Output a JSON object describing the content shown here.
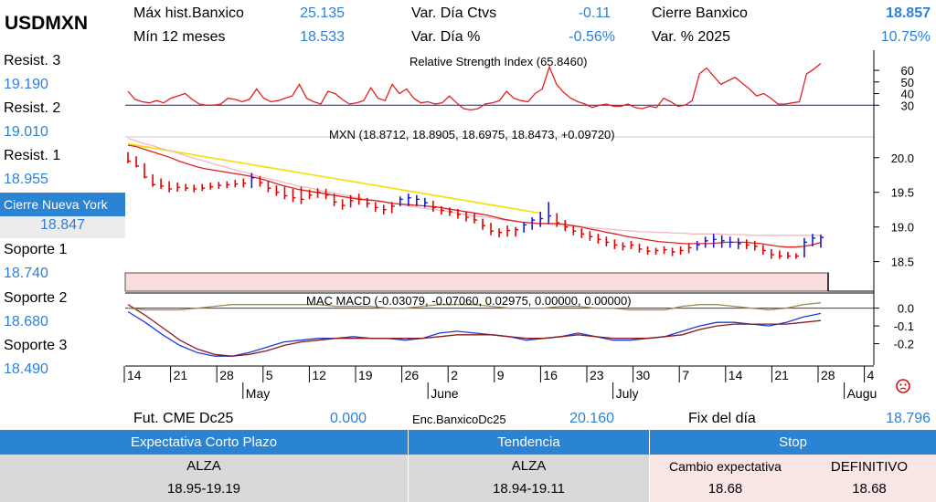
{
  "header": {
    "symbol": "USDMXN",
    "max_hist_label": "Máx hist.Banxico",
    "max_hist_value": "25.135",
    "min_12m_label": "Mín 12 meses",
    "min_12m_value": "18.533",
    "var_dia_ctvs_label": "Var. Día Ctvs",
    "var_dia_ctvs_value": "-0.11",
    "var_dia_pct_label": "Var. Día %",
    "var_dia_pct_value": "-0.56%",
    "cierre_banxico_label": "Cierre Banxico",
    "cierre_banxico_value": "18.857",
    "var_2025_label": "Var. % 2025",
    "var_2025_value": "10.75%"
  },
  "levels": {
    "resist3_label": "Resist. 3",
    "resist3_value": "19.190",
    "resist2_label": "Resist. 2",
    "resist2_value": "19.010",
    "resist1_label": "Resist. 1",
    "resist1_value": "18.955",
    "ny_label": "Cierre Nueva York",
    "ny_value": "18.847",
    "soporte1_label": "Soporte 1",
    "soporte1_value": "18.740",
    "soporte2_label": "Soporte 2",
    "soporte2_value": "18.680",
    "soporte3_label": "Soporte 3",
    "soporte3_value": "18.490"
  },
  "footer_row": {
    "fut_label": "Fut. CME Dc25",
    "fut_value": "0.000",
    "enc_label": "Enc.BanxicoDc25",
    "enc_value": "20.160",
    "fix_label": "Fix del día",
    "fix_value": "18.796"
  },
  "table": {
    "col1_header": "Expectativa Corto Plazo",
    "col2_header": "Tendencia",
    "col3_header": "Stop",
    "col1_line1": "ALZA",
    "col1_line2": "18.95-19.19",
    "col2_line1": "ALZA",
    "col2_line2": "18.94-19.11",
    "col3_label1": "Cambio expectativa",
    "col3_label2": "DEFINITIVO",
    "col3_value1": "18.68",
    "col3_value2": "18.68"
  },
  "colors": {
    "accent_blue": "#2b83d4",
    "value_blue": "#2f7fd7",
    "down_bar": "#e00000",
    "up_bar": "#1a1acc",
    "ma_red": "#e02020",
    "ma_pink": "#f4b8c0",
    "ma_yellow": "#f2e000",
    "table_grey": "#d9d9d9",
    "table_pink": "#fbe6e6"
  },
  "chart_data": [
    {
      "type": "line",
      "title": "Relative Strength Index (65.8460)",
      "ylim": [
        20,
        75
      ],
      "yticks": [
        30,
        40,
        50,
        60
      ],
      "reference_line": 30,
      "values": [
        42,
        35,
        33,
        32,
        34,
        32,
        36,
        38,
        40,
        35,
        31,
        30,
        30,
        31,
        36,
        35,
        33,
        35,
        44,
        36,
        33,
        34,
        36,
        38,
        48,
        36,
        33,
        31,
        42,
        40,
        35,
        31,
        32,
        34,
        45,
        36,
        34,
        48,
        40,
        44,
        36,
        32,
        33,
        31,
        32,
        38,
        32,
        27,
        26,
        27,
        31,
        32,
        34,
        42,
        36,
        34,
        33,
        40,
        44,
        63,
        48,
        41,
        36,
        33,
        31,
        28,
        30,
        31,
        29,
        29,
        31,
        28,
        27,
        29,
        28,
        36,
        33,
        29,
        30,
        34,
        57,
        62,
        55,
        48,
        51,
        54,
        49,
        44,
        38,
        40,
        36,
        31,
        31,
        32,
        33,
        57,
        61,
        66
      ]
    },
    {
      "type": "candlestick",
      "title": "MXN (18.8712, 18.8905, 18.6975, 18.8473, +0.09720)",
      "ylim": [
        18.35,
        20.3
      ],
      "yticks": [
        18.5,
        19.0,
        19.5,
        20.0
      ],
      "x_tick_labels": [
        "14",
        "21",
        "28",
        "5",
        "12",
        "19",
        "26",
        "2",
        "9",
        "16",
        "23",
        "30",
        "7",
        "14",
        "21",
        "28",
        "4"
      ],
      "month_labels": [
        "May",
        "June",
        "July",
        "Augu"
      ],
      "bars": [
        {
          "h": 20.08,
          "l": 19.92,
          "c": 19.95,
          "up": false
        },
        {
          "h": 20.02,
          "l": 19.86,
          "c": 19.88,
          "up": false
        },
        {
          "h": 19.92,
          "l": 19.7,
          "c": 19.72,
          "up": false
        },
        {
          "h": 19.76,
          "l": 19.58,
          "c": 19.61,
          "up": false
        },
        {
          "h": 19.7,
          "l": 19.55,
          "c": 19.59,
          "up": false
        },
        {
          "h": 19.66,
          "l": 19.5,
          "c": 19.55,
          "up": false
        },
        {
          "h": 19.64,
          "l": 19.51,
          "c": 19.57,
          "up": false
        },
        {
          "h": 19.62,
          "l": 19.52,
          "c": 19.56,
          "up": false
        },
        {
          "h": 19.61,
          "l": 19.5,
          "c": 19.55,
          "up": false
        },
        {
          "h": 19.62,
          "l": 19.52,
          "c": 19.56,
          "up": false
        },
        {
          "h": 19.64,
          "l": 19.54,
          "c": 19.58,
          "up": false
        },
        {
          "h": 19.65,
          "l": 19.55,
          "c": 19.6,
          "up": false
        },
        {
          "h": 19.66,
          "l": 19.56,
          "c": 19.61,
          "up": false
        },
        {
          "h": 19.68,
          "l": 19.57,
          "c": 19.62,
          "up": false
        },
        {
          "h": 19.7,
          "l": 19.57,
          "c": 19.63,
          "up": false
        },
        {
          "h": 19.78,
          "l": 19.56,
          "c": 19.71,
          "up": true
        },
        {
          "h": 19.73,
          "l": 19.58,
          "c": 19.64,
          "up": false
        },
        {
          "h": 19.66,
          "l": 19.5,
          "c": 19.56,
          "up": false
        },
        {
          "h": 19.6,
          "l": 19.45,
          "c": 19.5,
          "up": false
        },
        {
          "h": 19.58,
          "l": 19.4,
          "c": 19.45,
          "up": false
        },
        {
          "h": 19.55,
          "l": 19.36,
          "c": 19.42,
          "up": false
        },
        {
          "h": 19.58,
          "l": 19.33,
          "c": 19.4,
          "up": false
        },
        {
          "h": 19.54,
          "l": 19.4,
          "c": 19.46,
          "up": false
        },
        {
          "h": 19.56,
          "l": 19.42,
          "c": 19.5,
          "up": false
        },
        {
          "h": 19.55,
          "l": 19.4,
          "c": 19.46,
          "up": false
        },
        {
          "h": 19.48,
          "l": 19.3,
          "c": 19.36,
          "up": false
        },
        {
          "h": 19.4,
          "l": 19.25,
          "c": 19.31,
          "up": false
        },
        {
          "h": 19.46,
          "l": 19.28,
          "c": 19.38,
          "up": false
        },
        {
          "h": 19.48,
          "l": 19.32,
          "c": 19.4,
          "up": false
        },
        {
          "h": 19.42,
          "l": 19.28,
          "c": 19.34,
          "up": false
        },
        {
          "h": 19.36,
          "l": 19.22,
          "c": 19.28,
          "up": false
        },
        {
          "h": 19.32,
          "l": 19.18,
          "c": 19.25,
          "up": false
        },
        {
          "h": 19.36,
          "l": 19.2,
          "c": 19.3,
          "up": false
        },
        {
          "h": 19.44,
          "l": 19.3,
          "c": 19.4,
          "up": true
        },
        {
          "h": 19.48,
          "l": 19.3,
          "c": 19.42,
          "up": true
        },
        {
          "h": 19.46,
          "l": 19.3,
          "c": 19.4,
          "up": true
        },
        {
          "h": 19.42,
          "l": 19.28,
          "c": 19.35,
          "up": true
        },
        {
          "h": 19.38,
          "l": 19.22,
          "c": 19.28,
          "up": false
        },
        {
          "h": 19.3,
          "l": 19.18,
          "c": 19.24,
          "up": false
        },
        {
          "h": 19.28,
          "l": 19.16,
          "c": 19.22,
          "up": false
        },
        {
          "h": 19.26,
          "l": 19.12,
          "c": 19.18,
          "up": false
        },
        {
          "h": 19.22,
          "l": 19.08,
          "c": 19.14,
          "up": false
        },
        {
          "h": 19.2,
          "l": 19.05,
          "c": 19.1,
          "up": false
        },
        {
          "h": 19.12,
          "l": 18.96,
          "c": 19.02,
          "up": false
        },
        {
          "h": 19.06,
          "l": 18.88,
          "c": 18.94,
          "up": false
        },
        {
          "h": 18.98,
          "l": 18.85,
          "c": 18.92,
          "up": false
        },
        {
          "h": 19.02,
          "l": 18.86,
          "c": 18.95,
          "up": false
        },
        {
          "h": 19.0,
          "l": 18.86,
          "c": 18.96,
          "up": false
        },
        {
          "h": 19.06,
          "l": 18.92,
          "c": 19.03,
          "up": true
        },
        {
          "h": 19.14,
          "l": 18.96,
          "c": 19.1,
          "up": true
        },
        {
          "h": 19.22,
          "l": 19.0,
          "c": 19.12,
          "up": true
        },
        {
          "h": 19.36,
          "l": 19.04,
          "c": 19.16,
          "up": true
        },
        {
          "h": 19.2,
          "l": 19.0,
          "c": 19.06,
          "up": false
        },
        {
          "h": 19.1,
          "l": 18.94,
          "c": 19.0,
          "up": false
        },
        {
          "h": 19.02,
          "l": 18.88,
          "c": 18.94,
          "up": false
        },
        {
          "h": 18.98,
          "l": 18.84,
          "c": 18.9,
          "up": false
        },
        {
          "h": 18.94,
          "l": 18.8,
          "c": 18.86,
          "up": false
        },
        {
          "h": 18.9,
          "l": 18.76,
          "c": 18.82,
          "up": false
        },
        {
          "h": 18.86,
          "l": 18.72,
          "c": 18.78,
          "up": false
        },
        {
          "h": 18.82,
          "l": 18.68,
          "c": 18.74,
          "up": false
        },
        {
          "h": 18.78,
          "l": 18.66,
          "c": 18.72,
          "up": false
        },
        {
          "h": 18.8,
          "l": 18.68,
          "c": 18.74,
          "up": false
        },
        {
          "h": 18.76,
          "l": 18.63,
          "c": 18.68,
          "up": false
        },
        {
          "h": 18.72,
          "l": 18.6,
          "c": 18.65,
          "up": false
        },
        {
          "h": 18.7,
          "l": 18.6,
          "c": 18.66,
          "up": false
        },
        {
          "h": 18.72,
          "l": 18.61,
          "c": 18.67,
          "up": false
        },
        {
          "h": 18.7,
          "l": 18.58,
          "c": 18.64,
          "up": false
        },
        {
          "h": 18.72,
          "l": 18.6,
          "c": 18.66,
          "up": false
        },
        {
          "h": 18.76,
          "l": 18.62,
          "c": 18.7,
          "up": false
        },
        {
          "h": 18.8,
          "l": 18.66,
          "c": 18.74,
          "up": true
        },
        {
          "h": 18.86,
          "l": 18.7,
          "c": 18.8,
          "up": true
        },
        {
          "h": 18.9,
          "l": 18.7,
          "c": 18.82,
          "up": true
        },
        {
          "h": 18.88,
          "l": 18.7,
          "c": 18.8,
          "up": true
        },
        {
          "h": 18.86,
          "l": 18.7,
          "c": 18.78,
          "up": true
        },
        {
          "h": 18.84,
          "l": 18.68,
          "c": 18.76,
          "up": true
        },
        {
          "h": 18.82,
          "l": 18.68,
          "c": 18.74,
          "up": false
        },
        {
          "h": 18.8,
          "l": 18.66,
          "c": 18.72,
          "up": false
        },
        {
          "h": 18.74,
          "l": 18.6,
          "c": 18.66,
          "up": false
        },
        {
          "h": 18.68,
          "l": 18.54,
          "c": 18.6,
          "up": false
        },
        {
          "h": 18.66,
          "l": 18.54,
          "c": 18.58,
          "up": false
        },
        {
          "h": 18.64,
          "l": 18.54,
          "c": 18.58,
          "up": false
        },
        {
          "h": 18.62,
          "l": 18.54,
          "c": 18.58,
          "up": false
        },
        {
          "h": 18.84,
          "l": 18.56,
          "c": 18.78,
          "up": true
        },
        {
          "h": 18.9,
          "l": 18.72,
          "c": 18.84,
          "up": true
        },
        {
          "h": 18.89,
          "l": 18.7,
          "c": 18.85,
          "up": true
        }
      ],
      "ma_red": [
        20.18,
        20.16,
        20.12,
        20.08,
        20.04,
        20.0,
        19.95,
        19.91,
        19.87,
        19.84,
        19.82,
        19.8,
        19.78,
        19.76,
        19.74,
        19.71,
        19.68,
        19.64,
        19.6,
        19.57,
        19.54,
        19.52,
        19.5,
        19.48,
        19.46,
        19.44,
        19.42,
        19.4,
        19.39,
        19.38,
        19.36,
        19.34,
        19.33,
        19.32,
        19.31,
        19.3,
        19.29,
        19.27,
        19.25,
        19.23,
        19.21,
        19.19,
        19.17,
        19.14,
        19.11,
        19.09,
        19.07,
        19.06,
        19.05,
        19.05,
        19.05,
        19.04,
        19.02,
        19.0,
        18.97,
        18.95,
        18.92,
        18.9,
        18.87,
        18.85,
        18.83,
        18.81,
        18.79,
        18.78,
        18.77,
        18.76,
        18.76,
        18.76,
        18.76,
        18.77,
        18.78,
        18.78,
        18.78,
        18.77,
        18.76,
        18.74,
        18.72,
        18.71,
        18.71,
        18.72,
        18.74,
        18.78
      ],
      "ma_pink": [
        20.28,
        20.24,
        20.2,
        20.17,
        20.13,
        20.1,
        20.06,
        20.02,
        19.98,
        19.95,
        19.91,
        19.88,
        19.84,
        19.81,
        19.78,
        19.74,
        19.71,
        19.68,
        19.65,
        19.62,
        19.59,
        19.57,
        19.54,
        19.51,
        19.49,
        19.47,
        19.44,
        19.42,
        19.4,
        19.38,
        19.36,
        19.34,
        19.32,
        19.3,
        19.28,
        19.26,
        19.25,
        19.23,
        19.21,
        19.19,
        19.17,
        19.15,
        19.14,
        19.12,
        19.1,
        19.09,
        19.07,
        19.06,
        19.05,
        19.04,
        19.03,
        19.02,
        19.01,
        19.0,
        18.99,
        18.98,
        18.97,
        18.96,
        18.95,
        18.94,
        18.93,
        18.93,
        18.92,
        18.92,
        18.91,
        18.91,
        18.9,
        18.9,
        18.9,
        18.9,
        18.89,
        18.89,
        18.89,
        18.88,
        18.88,
        18.88,
        18.88,
        18.88,
        18.88,
        18.88,
        18.88,
        18.88
      ],
      "ma_yellow": [
        20.2,
        20.18,
        20.16,
        20.14,
        20.12,
        20.1,
        20.08,
        20.06,
        20.04,
        20.02,
        20.0,
        19.98,
        19.96,
        19.94,
        19.92,
        19.9,
        19.88,
        19.86,
        19.84,
        19.82,
        19.8,
        19.78,
        19.76,
        19.74,
        19.72,
        19.7,
        19.68,
        19.66,
        19.64,
        19.62,
        19.6,
        19.58,
        19.56,
        19.54,
        19.52,
        19.5,
        19.48,
        19.46,
        19.44,
        19.42,
        19.4,
        19.38,
        19.36,
        19.34,
        19.32,
        19.3,
        19.28,
        19.26,
        19.24,
        19.22,
        19.2
      ]
    },
    {
      "type": "line",
      "title": "MAC MACD (-0.03079, -0.07060, 0.02975, 0.00000, 0.00000)",
      "ylim": [
        -0.31,
        0.08
      ],
      "yticks": [
        0.0,
        -0.1,
        -0.2
      ],
      "series": [
        {
          "color": "#1a3cdc",
          "values": [
            -0.02,
            -0.08,
            -0.15,
            -0.21,
            -0.25,
            -0.27,
            -0.27,
            -0.25,
            -0.22,
            -0.19,
            -0.18,
            -0.17,
            -0.17,
            -0.16,
            -0.17,
            -0.17,
            -0.18,
            -0.17,
            -0.14,
            -0.13,
            -0.14,
            -0.15,
            -0.16,
            -0.18,
            -0.17,
            -0.16,
            -0.14,
            -0.16,
            -0.18,
            -0.18,
            -0.17,
            -0.16,
            -0.13,
            -0.1,
            -0.08,
            -0.08,
            -0.09,
            -0.1,
            -0.08,
            -0.05,
            -0.03
          ]
        },
        {
          "color": "#8b1a1a",
          "values": [
            0.02,
            -0.04,
            -0.11,
            -0.18,
            -0.23,
            -0.26,
            -0.27,
            -0.26,
            -0.24,
            -0.21,
            -0.19,
            -0.18,
            -0.17,
            -0.17,
            -0.17,
            -0.17,
            -0.17,
            -0.17,
            -0.16,
            -0.15,
            -0.15,
            -0.15,
            -0.16,
            -0.17,
            -0.17,
            -0.16,
            -0.15,
            -0.16,
            -0.17,
            -0.17,
            -0.17,
            -0.16,
            -0.15,
            -0.12,
            -0.1,
            -0.09,
            -0.09,
            -0.09,
            -0.09,
            -0.08,
            -0.07
          ]
        },
        {
          "color": "#9b8d5a",
          "values": [
            0.0,
            -0.01,
            -0.01,
            -0.01,
            0.0,
            0.01,
            0.02,
            0.02,
            0.02,
            0.02,
            0.02,
            0.02,
            0.01,
            0.01,
            0.01,
            0.0,
            0.0,
            0.01,
            0.02,
            0.02,
            0.02,
            0.01,
            0.0,
            0.0,
            0.0,
            0.01,
            0.01,
            0.0,
            0.0,
            -0.01,
            -0.01,
            -0.01,
            0.01,
            0.02,
            0.02,
            0.01,
            0.0,
            -0.01,
            0.0,
            0.02,
            0.03
          ]
        }
      ]
    }
  ]
}
